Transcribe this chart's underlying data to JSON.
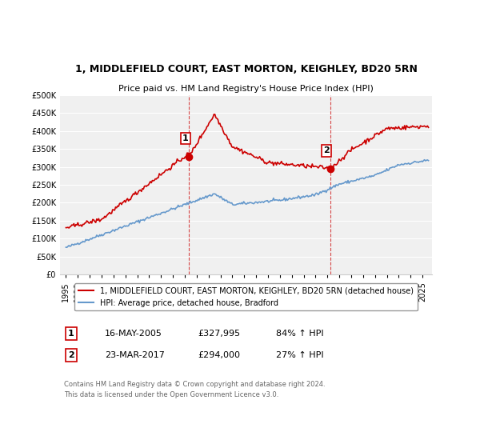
{
  "title": "1, MIDDLEFIELD COURT, EAST MORTON, KEIGHLEY, BD20 5RN",
  "subtitle": "Price paid vs. HM Land Registry's House Price Index (HPI)",
  "legend_line1": "1, MIDDLEFIELD COURT, EAST MORTON, KEIGHLEY, BD20 5RN (detached house)",
  "legend_line2": "HPI: Average price, detached house, Bradford",
  "footer1": "Contains HM Land Registry data © Crown copyright and database right 2024.",
  "footer2": "This data is licensed under the Open Government Licence v3.0.",
  "sale1_label": "1",
  "sale1_date": "16-MAY-2005",
  "sale1_price": "£327,995",
  "sale1_hpi": "84% ↑ HPI",
  "sale1_year": 2005.37,
  "sale1_value": 327995,
  "sale2_label": "2",
  "sale2_date": "23-MAR-2017",
  "sale2_price": "£294,000",
  "sale2_hpi": "27% ↑ HPI",
  "sale2_year": 2017.22,
  "sale2_value": 294000,
  "red_color": "#cc0000",
  "blue_color": "#6699cc",
  "ylim_max": 500000,
  "background_color": "#ffffff",
  "plot_bg_color": "#f0f0f0"
}
